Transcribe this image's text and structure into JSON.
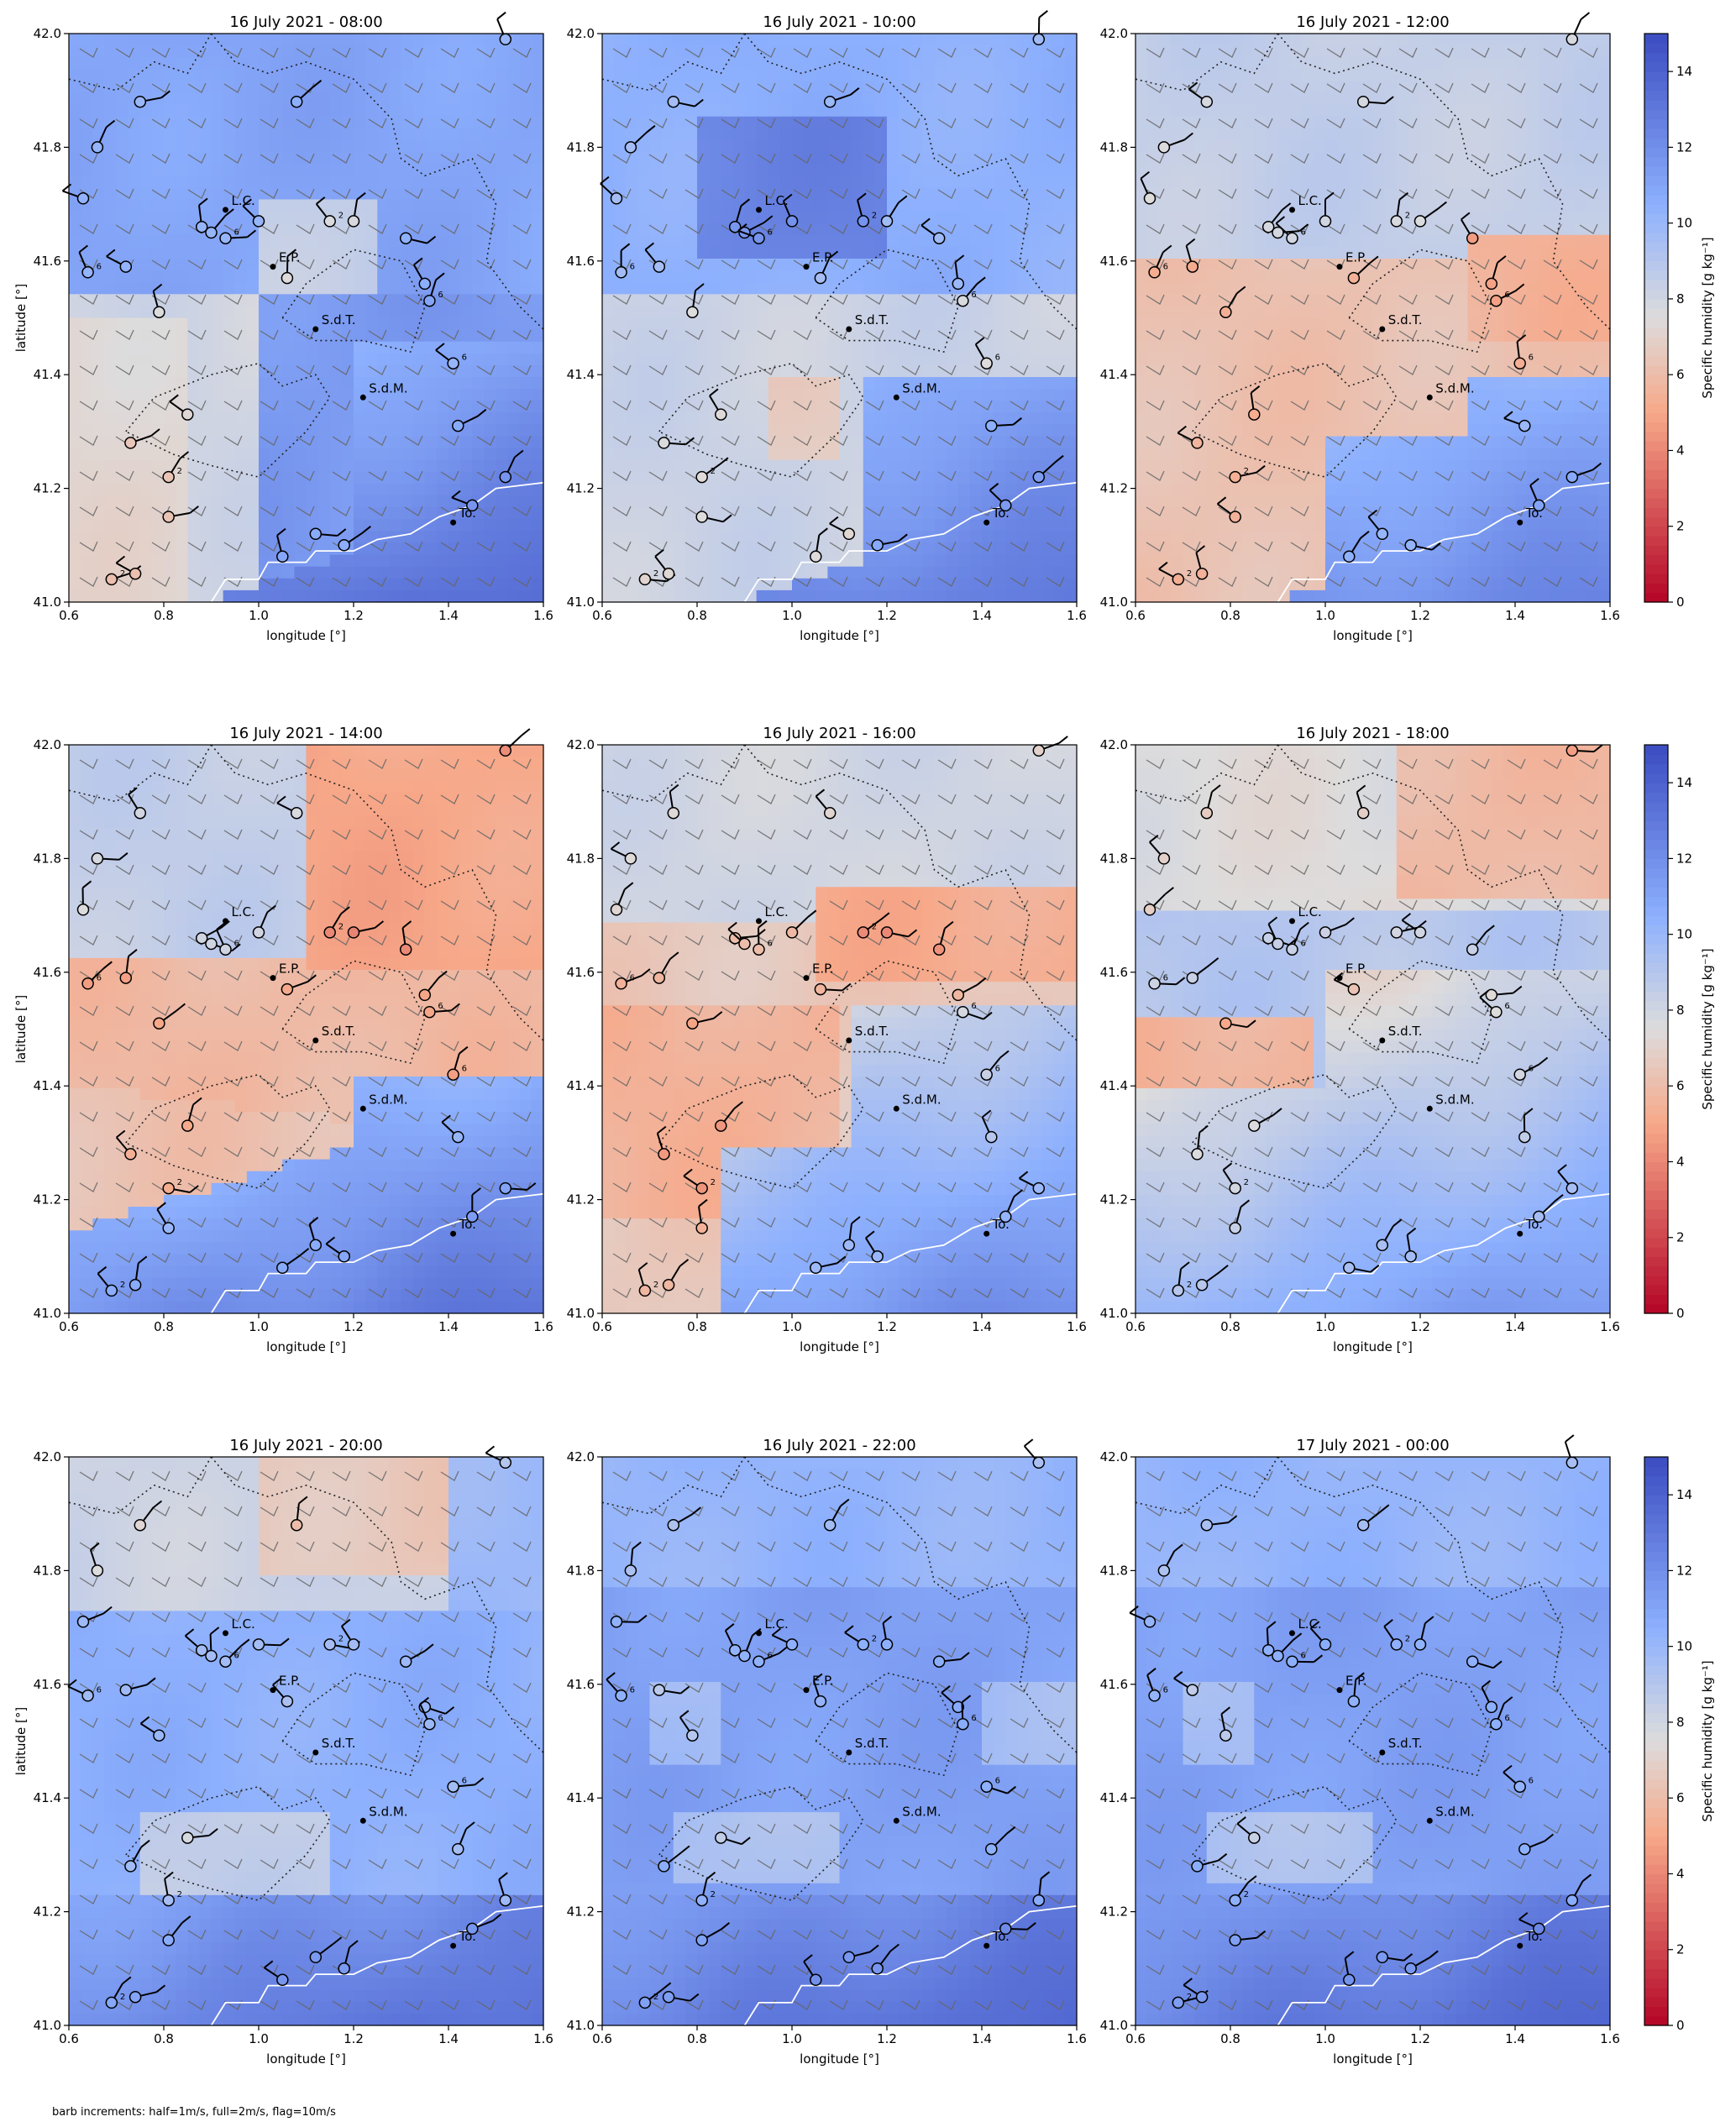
{
  "figure": {
    "footnote": "barb increments: half=1m/s, full=2m/s, flag=10m/s",
    "xlabel": "longitude [°]",
    "ylabel": "latitude [°]",
    "colorbar_label": "Specific humidity [g kg⁻¹]",
    "colorbar_ticks": [
      "0",
      "2",
      "4",
      "6",
      "8",
      "10",
      "12",
      "14"
    ],
    "colormap": [
      "#b40426",
      "#f7a889",
      "#dddcdc",
      "#8db0fe",
      "#3b4cc0"
    ]
  },
  "chart_data": [
    {
      "type": "heatmap",
      "title": "16 July 2021 - 08:00",
      "xlim": [
        0.6,
        1.6
      ],
      "ylim": [
        41.0,
        42.0
      ],
      "xticks": [
        "0.6",
        "0.8",
        "1.0",
        "1.2",
        "1.4",
        "1.6"
      ],
      "yticks": [
        "41.0",
        "41.2",
        "41.4",
        "41.6",
        "41.8",
        "42.0"
      ],
      "zlim": [
        0,
        15
      ],
      "humidity_pattern": "north 11-12, central-west 8-9, southwest 7, southeast 13-14"
    },
    {
      "type": "heatmap",
      "title": "16 July 2021 - 10:00",
      "xlim": [
        0.6,
        1.6
      ],
      "ylim": [
        41.0,
        42.0
      ],
      "xticks": [
        "0.6",
        "0.8",
        "1.0",
        "1.2",
        "1.4",
        "1.6"
      ],
      "yticks": [
        "41.0",
        "41.2",
        "41.4",
        "41.6",
        "41.8",
        "42.0"
      ],
      "zlim": [
        0,
        15
      ],
      "humidity_pattern": "north-central 11-12, west 8, small 6-7 patch, southeast 12-13"
    },
    {
      "type": "heatmap",
      "title": "16 July 2021 - 12:00",
      "xlim": [
        0.6,
        1.6
      ],
      "ylim": [
        41.0,
        42.0
      ],
      "xticks": [
        "0.6",
        "0.8",
        "1.0",
        "1.2",
        "1.4",
        "1.6"
      ],
      "yticks": [
        "41.0",
        "41.2",
        "41.4",
        "41.6",
        "41.8",
        "42.0"
      ],
      "zlim": [
        0,
        15
      ],
      "humidity_pattern": "north 8, central band 6-7, southeast 11-13"
    },
    {
      "type": "heatmap",
      "title": "16 July 2021 - 14:00",
      "xlim": [
        0.6,
        1.6
      ],
      "ylim": [
        41.0,
        42.0
      ],
      "xticks": [
        "0.6",
        "0.8",
        "1.0",
        "1.2",
        "1.4",
        "1.6"
      ],
      "yticks": [
        "41.0",
        "41.2",
        "41.4",
        "41.6",
        "41.8",
        "42.0"
      ],
      "zlim": [
        0,
        15
      ],
      "humidity_pattern": "north 8, central band 5-6, southeast 12-14"
    },
    {
      "type": "heatmap",
      "title": "16 July 2021 - 16:00",
      "xlim": [
        0.6,
        1.6
      ],
      "ylim": [
        41.0,
        42.0
      ],
      "xticks": [
        "0.6",
        "0.8",
        "1.0",
        "1.2",
        "1.4",
        "1.6"
      ],
      "yticks": [
        "41.0",
        "41.2",
        "41.4",
        "41.6",
        "41.8",
        "42.0"
      ],
      "zlim": [
        0,
        15
      ],
      "humidity_pattern": "north 7-8, west band 5-6, southeast 11-14"
    },
    {
      "type": "heatmap",
      "title": "16 July 2021 - 18:00",
      "xlim": [
        0.6,
        1.6
      ],
      "ylim": [
        41.0,
        42.0
      ],
      "xticks": [
        "0.6",
        "0.8",
        "1.0",
        "1.2",
        "1.4",
        "1.6"
      ],
      "yticks": [
        "41.0",
        "41.2",
        "41.4",
        "41.6",
        "41.8",
        "42.0"
      ],
      "zlim": [
        0,
        15
      ],
      "humidity_pattern": "north 6-7, west patch 5-6, south 11-14"
    },
    {
      "type": "heatmap",
      "title": "16 July 2021 - 20:00",
      "xlim": [
        0.6,
        1.6
      ],
      "ylim": [
        41.0,
        42.0
      ],
      "xticks": [
        "0.6",
        "0.8",
        "1.0",
        "1.2",
        "1.4",
        "1.6"
      ],
      "yticks": [
        "41.0",
        "41.2",
        "41.4",
        "41.6",
        "41.8",
        "42.0"
      ],
      "zlim": [
        0,
        15
      ],
      "humidity_pattern": "north 8-9, small 6-7 patch, south 12-14"
    },
    {
      "type": "heatmap",
      "title": "16 July 2021 - 22:00",
      "xlim": [
        0.6,
        1.6
      ],
      "ylim": [
        41.0,
        42.0
      ],
      "xticks": [
        "0.6",
        "0.8",
        "1.0",
        "1.2",
        "1.4",
        "1.6"
      ],
      "yticks": [
        "41.0",
        "41.2",
        "41.4",
        "41.6",
        "41.8",
        "42.0"
      ],
      "zlim": [
        0,
        15
      ],
      "humidity_pattern": "mostly 11-13, patches 9-10, south 13-14"
    },
    {
      "type": "heatmap",
      "title": "17 July 2021 - 00:00",
      "xlim": [
        0.6,
        1.6
      ],
      "ylim": [
        41.0,
        42.0
      ],
      "xticks": [
        "0.6",
        "0.8",
        "1.0",
        "1.2",
        "1.4",
        "1.6"
      ],
      "yticks": [
        "41.0",
        "41.2",
        "41.4",
        "41.6",
        "41.8",
        "42.0"
      ],
      "zlim": [
        0,
        15
      ],
      "humidity_pattern": "mostly 11-13, patches 9-10, south 13-14"
    }
  ],
  "locations": [
    {
      "label": "L.C.",
      "lon": 0.93,
      "lat": 41.69
    },
    {
      "label": "E.P.",
      "lon": 1.03,
      "lat": 41.59
    },
    {
      "label": "S.d.T.",
      "lon": 1.12,
      "lat": 41.48
    },
    {
      "label": "S.d.M.",
      "lon": 1.22,
      "lat": 41.36
    },
    {
      "label": "To.",
      "lon": 1.41,
      "lat": 41.14
    }
  ],
  "station_number_labels": [
    "2",
    "6"
  ]
}
